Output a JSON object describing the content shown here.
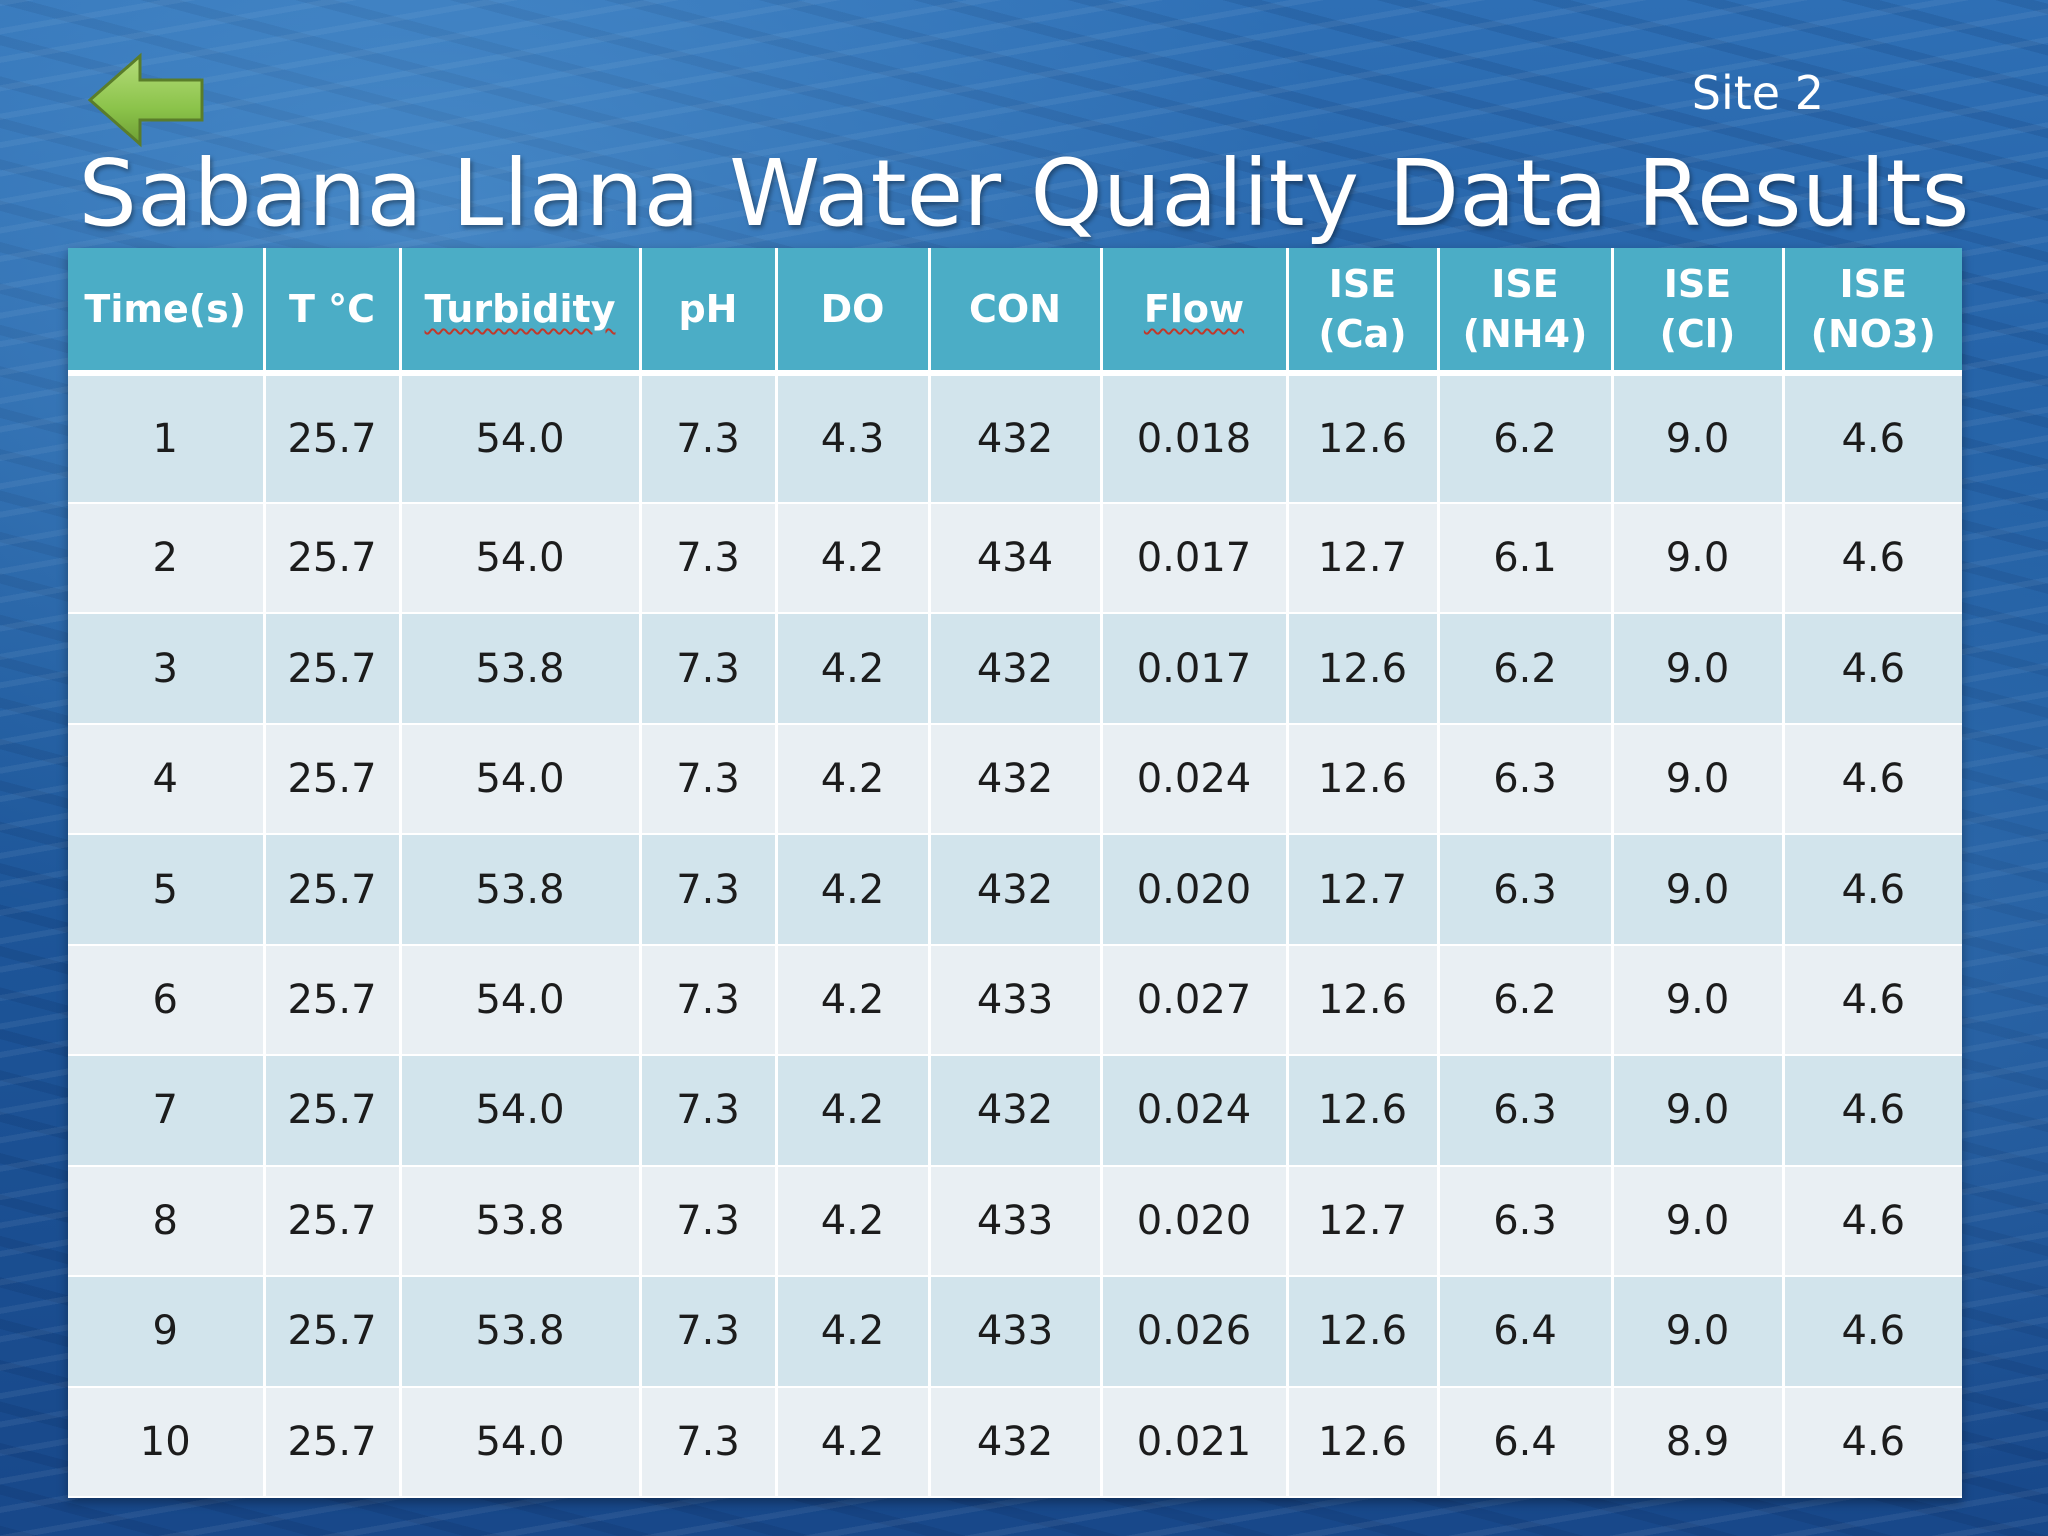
{
  "slide": {
    "site_label": "Site 2",
    "title": "Sabana Llana Water Quality Data Results",
    "back_icon": "back-arrow-icon",
    "colors": {
      "header_bg": "#4badc6",
      "row_odd_bg": "#d2e4ec",
      "row_even_bg": "#e9eff3",
      "arrow_fill": "#8bc34a"
    }
  },
  "table": {
    "headers": [
      [
        "Time(s)"
      ],
      [
        "T °C"
      ],
      [
        "Turbidity"
      ],
      [
        "pH"
      ],
      [
        "DO"
      ],
      [
        "CON"
      ],
      [
        "Flow"
      ],
      [
        "ISE",
        "(Ca)"
      ],
      [
        "ISE",
        "(NH4)"
      ],
      [
        "ISE",
        "(Cl)"
      ],
      [
        "ISE",
        "(NO3)"
      ]
    ],
    "rows": [
      [
        "1",
        "25.7",
        "54.0",
        "7.3",
        "4.3",
        "432",
        "0.018",
        "12.6",
        "6.2",
        "9.0",
        "4.6"
      ],
      [
        "2",
        "25.7",
        "54.0",
        "7.3",
        "4.2",
        "434",
        "0.017",
        "12.7",
        "6.1",
        "9.0",
        "4.6"
      ],
      [
        "3",
        "25.7",
        "53.8",
        "7.3",
        "4.2",
        "432",
        "0.017",
        "12.6",
        "6.2",
        "9.0",
        "4.6"
      ],
      [
        "4",
        "25.7",
        "54.0",
        "7.3",
        "4.2",
        "432",
        "0.024",
        "12.6",
        "6.3",
        "9.0",
        "4.6"
      ],
      [
        "5",
        "25.7",
        "53.8",
        "7.3",
        "4.2",
        "432",
        "0.020",
        "12.7",
        "6.3",
        "9.0",
        "4.6"
      ],
      [
        "6",
        "25.7",
        "54.0",
        "7.3",
        "4.2",
        "433",
        "0.027",
        "12.6",
        "6.2",
        "9.0",
        "4.6"
      ],
      [
        "7",
        "25.7",
        "54.0",
        "7.3",
        "4.2",
        "432",
        "0.024",
        "12.6",
        "6.3",
        "9.0",
        "4.6"
      ],
      [
        "8",
        "25.7",
        "53.8",
        "7.3",
        "4.2",
        "433",
        "0.020",
        "12.7",
        "6.3",
        "9.0",
        "4.6"
      ],
      [
        "9",
        "25.7",
        "53.8",
        "7.3",
        "4.2",
        "433",
        "0.026",
        "12.6",
        "6.4",
        "9.0",
        "4.6"
      ],
      [
        "10",
        "25.7",
        "54.0",
        "7.3",
        "4.2",
        "432",
        "0.021",
        "12.6",
        "6.4",
        "8.9",
        "4.6"
      ]
    ]
  }
}
